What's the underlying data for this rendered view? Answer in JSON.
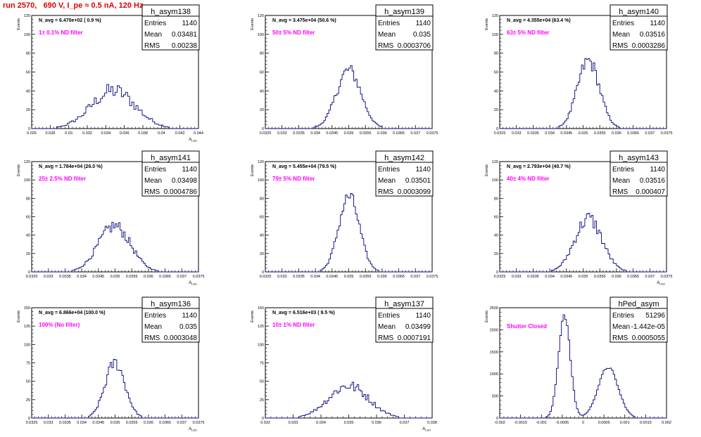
{
  "header": {
    "run_title": "run 2570,   690 V, I_pe ≈ 0.5 nA, 120 Hz"
  },
  "colors": {
    "histogram": "#000080",
    "annotation": "#ff00ff",
    "title_text": "#e00000",
    "axes": "#000000"
  },
  "chart_data": [
    {
      "type": "histogram",
      "name": "h_asym138",
      "stats": {
        "Entries": "1140",
        "Mean": "0.03481",
        "RMS": "0.00238"
      },
      "navg": "N_avg = 6.470e+02 ( 0.9 %)",
      "filter": "1± 0.1% ND filter",
      "ylabel": "Events",
      "xlabel": "A_LED",
      "xlim": [
        0.026,
        0.044
      ],
      "ylim": [
        0,
        120
      ],
      "xticks": [
        "0.026",
        "0.028",
        "0.03",
        "0.032",
        "0.034",
        "0.036",
        "0.038",
        "0.04",
        "0.042",
        "0.044"
      ],
      "yticks": [
        "0",
        "20",
        "40",
        "60",
        "80",
        "100",
        "120"
      ],
      "mean": 0.03481,
      "rms": 0.00238,
      "peak": 40,
      "noise": 0.22,
      "nbins": 80
    },
    {
      "type": "histogram",
      "name": "h_asym139",
      "stats": {
        "Entries": "1140",
        "Mean": "0.035",
        "RMS": "0.0003706"
      },
      "navg": "N_avg = 3.475e+04 (50.6 %)",
      "filter": "50± 5% ND filter",
      "ylabel": "Events",
      "xlabel": "",
      "xlim": [
        0.0325,
        0.0375
      ],
      "ylim": [
        0,
        120
      ],
      "xticks": [
        "0.0325",
        "0.033",
        "0.0335",
        "0.034",
        "0.0345",
        "0.035",
        "0.0355",
        "0.036",
        "0.0365",
        "0.037",
        "0.0375"
      ],
      "yticks": [
        "0",
        "20",
        "40",
        "60",
        "80",
        "100",
        "120"
      ],
      "mean": 0.035,
      "rms": 0.00037,
      "peak": 62,
      "noise": 0.12,
      "nbins": 100
    },
    {
      "type": "histogram",
      "name": "h_asym140",
      "stats": {
        "Entries": "1140",
        "Mean": "0.03516",
        "RMS": "0.0003286"
      },
      "navg": "N_avg = 4.355e+04 (63.4 %)",
      "filter": "63± 5% ND filter",
      "ylabel": "Events",
      "xlabel": "",
      "xlim": [
        0.0325,
        0.0375
      ],
      "ylim": [
        0,
        120
      ],
      "xticks": [
        "0.0325",
        "0.033",
        "0.0335",
        "0.034",
        "0.0345",
        "0.035",
        "0.0355",
        "0.036",
        "0.0365",
        "0.037",
        "0.0375"
      ],
      "yticks": [
        "0",
        "20",
        "40",
        "60",
        "80",
        "100",
        "120"
      ],
      "mean": 0.03516,
      "rms": 0.00033,
      "peak": 72,
      "noise": 0.12,
      "nbins": 100
    },
    {
      "type": "histogram",
      "name": "h_asym141",
      "stats": {
        "Entries": "1140",
        "Mean": "0.03498",
        "RMS": "0.0004786"
      },
      "navg": "N_avg = 1.784e+04 (26.0 %)",
      "filter": "25± 2.5% ND filter",
      "ylabel": "Events",
      "xlabel": "A_LED",
      "xlim": [
        0.0325,
        0.0375
      ],
      "ylim": [
        0,
        120
      ],
      "xticks": [
        "0.0325",
        "0.033",
        "0.0335",
        "0.034",
        "0.0345",
        "0.035",
        "0.0355",
        "0.036",
        "0.0365",
        "0.037",
        "0.0375"
      ],
      "yticks": [
        "0",
        "20",
        "40",
        "60",
        "80",
        "100",
        "120"
      ],
      "mean": 0.03498,
      "rms": 0.00048,
      "peak": 50,
      "noise": 0.15,
      "nbins": 100
    },
    {
      "type": "histogram",
      "name": "h_asym142",
      "stats": {
        "Entries": "1140",
        "Mean": "0.03501",
        "RMS": "0.0003099"
      },
      "navg": "N_avg = 5.455e+04 (79.5 %)",
      "filter": "79± 5% ND filter",
      "ylabel": "Events",
      "xlabel": "",
      "xlim": [
        0.0325,
        0.0375
      ],
      "ylim": [
        0,
        120
      ],
      "xticks": [
        "0.0325",
        "0.033",
        "0.0335",
        "0.034",
        "0.0345",
        "0.035",
        "0.0355",
        "0.036",
        "0.0365",
        "0.037",
        "0.0375"
      ],
      "yticks": [
        "0",
        "20",
        "40",
        "60",
        "80",
        "100",
        "120"
      ],
      "mean": 0.03501,
      "rms": 0.00031,
      "peak": 82,
      "noise": 0.1,
      "nbins": 100
    },
    {
      "type": "histogram",
      "name": "h_asym143",
      "stats": {
        "Entries": "1140",
        "Mean": "0.03516",
        "RMS": "0.000407"
      },
      "navg": "N_avg = 2.793e+04 (40.7 %)",
      "filter": "40± 4% ND filter",
      "ylabel": "Events",
      "xlabel": "A_LED",
      "xlim": [
        0.0325,
        0.0375
      ],
      "ylim": [
        0,
        120
      ],
      "xticks": [
        "0.0325",
        "0.033",
        "0.0335",
        "0.034",
        "0.0345",
        "0.035",
        "0.0355",
        "0.036",
        "0.0365",
        "0.037",
        "0.0375"
      ],
      "yticks": [
        "0",
        "20",
        "40",
        "60",
        "80",
        "100",
        "120"
      ],
      "mean": 0.03516,
      "rms": 0.00041,
      "peak": 58,
      "noise": 0.15,
      "nbins": 100
    },
    {
      "type": "histogram",
      "name": "h_asym136",
      "stats": {
        "Entries": "1140",
        "Mean": "0.035",
        "RMS": "0.0003048"
      },
      "navg": "N_avg = 6.866e+04 (100.0 %)",
      "filter": "100% (No filter)",
      "ylabel": "Events",
      "xlabel": "A_LED",
      "xlim": [
        0.0325,
        0.0375
      ],
      "ylim": [
        0,
        150
      ],
      "xticks": [
        "0.0325",
        "0.033",
        "0.0335",
        "0.034",
        "0.0345",
        "0.035",
        "0.0355",
        "0.036",
        "0.0365",
        "0.037",
        "0.0375"
      ],
      "yticks": [
        "0",
        "25",
        "50",
        "75",
        "100",
        "125",
        "150"
      ],
      "mean": 0.035,
      "rms": 0.0003,
      "peak": 75,
      "noise": 0.12,
      "nbins": 100
    },
    {
      "type": "histogram",
      "name": "h_asym137",
      "stats": {
        "Entries": "1140",
        "Mean": "0.03499",
        "RMS": "0.0007191"
      },
      "navg": "N_avg = 6.516e+03 ( 9.5 %)",
      "filter": "10± 1% ND filter",
      "ylabel": "Events",
      "xlabel": "A_LED",
      "xlim": [
        0.032,
        0.038
      ],
      "ylim": [
        0,
        150
      ],
      "xticks": [
        "0.032",
        "0.033",
        "0.034",
        "0.035",
        "0.036",
        "0.037",
        "0.038"
      ],
      "yticks": [
        "0",
        "25",
        "50",
        "75",
        "100",
        "125",
        "150"
      ],
      "mean": 0.03499,
      "rms": 0.00072,
      "peak": 44,
      "noise": 0.18,
      "nbins": 100
    },
    {
      "type": "histogram",
      "name": "hPed_asym",
      "stats": {
        "Entries": "51296",
        "Mean": "-1.442e-05",
        "RMS": "0.0005055"
      },
      "navg": "",
      "filter": "Shutter Closed",
      "ylabel": "Events",
      "xlabel": "",
      "xlim": [
        -0.002,
        0.002
      ],
      "ylim": [
        0,
        2500
      ],
      "xticks": [
        "-0.002",
        "-0.0015",
        "-0.001",
        "-0.0005",
        "0",
        "0.0005",
        "0.001",
        "0.0015",
        "0.002"
      ],
      "yticks": [
        "0",
        "500",
        "1000",
        "1500",
        "2000",
        "2500"
      ],
      "peaks": [
        {
          "mean": -0.00045,
          "sigma": 0.00014,
          "height": 2350
        },
        {
          "mean": 0.0006,
          "sigma": 0.00024,
          "height": 1150
        }
      ],
      "noise": 0.03,
      "nbins": 100
    }
  ]
}
